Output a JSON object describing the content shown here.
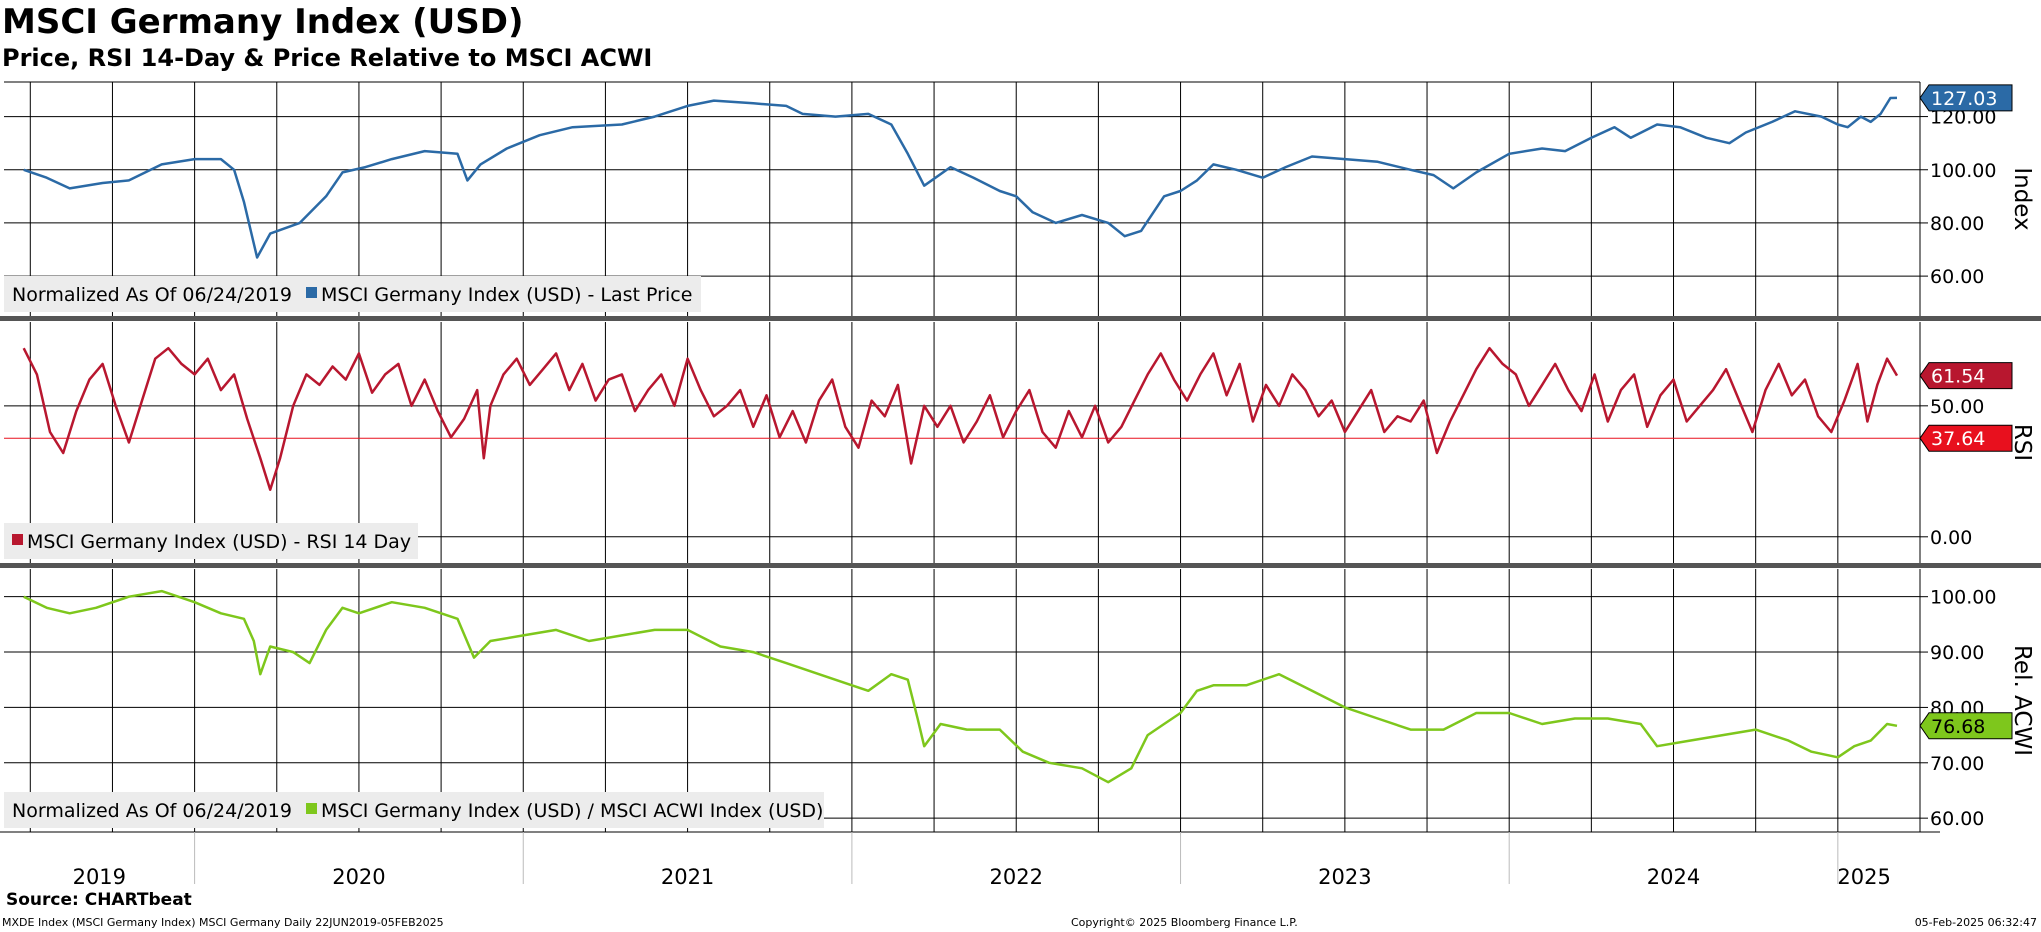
{
  "header": {
    "title": "MSCI Germany Index (USD)",
    "subtitle": "Price, RSI 14-Day & Price Relative to MSCI ACWI"
  },
  "footer": {
    "source": "Source: CHARTbeat",
    "meta_left": "MXDE Index (MSCI Germany Index) MSCI Germany  Daily 22JUN2019-05FEB2025",
    "copyright": "Copyright© 2025 Bloomberg Finance L.P.",
    "timestamp": "05-Feb-2025 06:32:47"
  },
  "colors": {
    "price": "#2b6aa6",
    "rsi": "#b8172f",
    "rsi_ref": "#e8101e",
    "relative": "#7ec71c",
    "grid": "#000000",
    "legend_bg": "#ececec",
    "divider": "#555555"
  },
  "chart_data": [
    {
      "id": "price",
      "type": "line",
      "axis_label": "Index",
      "ylim": [
        45,
        133
      ],
      "ticks": [
        "60.00",
        "80.00",
        "100.00",
        "120.00"
      ],
      "tick_values": [
        60,
        80,
        100,
        120
      ],
      "legend_prefix": "Normalized As Of 06/24/2019",
      "legend_label": "MSCI Germany Index (USD) - Last Price",
      "last_value": "127.03",
      "last_value_num": 127.03,
      "series_points": [
        [
          2019.48,
          100
        ],
        [
          2019.55,
          97
        ],
        [
          2019.62,
          93
        ],
        [
          2019.72,
          95
        ],
        [
          2019.8,
          96
        ],
        [
          2019.9,
          102
        ],
        [
          2020.0,
          104
        ],
        [
          2020.08,
          104
        ],
        [
          2020.12,
          100
        ],
        [
          2020.15,
          88
        ],
        [
          2020.19,
          67
        ],
        [
          2020.23,
          76
        ],
        [
          2020.32,
          80
        ],
        [
          2020.4,
          90
        ],
        [
          2020.45,
          99
        ],
        [
          2020.52,
          101
        ],
        [
          2020.6,
          104
        ],
        [
          2020.7,
          107
        ],
        [
          2020.8,
          106
        ],
        [
          2020.83,
          96
        ],
        [
          2020.87,
          102
        ],
        [
          2020.95,
          108
        ],
        [
          2021.05,
          113
        ],
        [
          2021.15,
          116
        ],
        [
          2021.3,
          117
        ],
        [
          2021.4,
          120
        ],
        [
          2021.5,
          124
        ],
        [
          2021.58,
          126
        ],
        [
          2021.7,
          125
        ],
        [
          2021.8,
          124
        ],
        [
          2021.85,
          121
        ],
        [
          2021.95,
          120
        ],
        [
          2022.05,
          121
        ],
        [
          2022.12,
          117
        ],
        [
          2022.17,
          106
        ],
        [
          2022.22,
          94
        ],
        [
          2022.3,
          101
        ],
        [
          2022.37,
          97
        ],
        [
          2022.45,
          92
        ],
        [
          2022.5,
          90
        ],
        [
          2022.55,
          84
        ],
        [
          2022.62,
          80
        ],
        [
          2022.7,
          83
        ],
        [
          2022.78,
          80
        ],
        [
          2022.83,
          75
        ],
        [
          2022.88,
          77
        ],
        [
          2022.95,
          90
        ],
        [
          2023.0,
          92
        ],
        [
          2023.05,
          96
        ],
        [
          2023.1,
          102
        ],
        [
          2023.17,
          100
        ],
        [
          2023.25,
          97
        ],
        [
          2023.32,
          101
        ],
        [
          2023.4,
          105
        ],
        [
          2023.5,
          104
        ],
        [
          2023.6,
          103
        ],
        [
          2023.7,
          100
        ],
        [
          2023.77,
          98
        ],
        [
          2023.83,
          93
        ],
        [
          2023.9,
          99
        ],
        [
          2024.0,
          106
        ],
        [
          2024.1,
          108
        ],
        [
          2024.17,
          107
        ],
        [
          2024.25,
          112
        ],
        [
          2024.32,
          116
        ],
        [
          2024.37,
          112
        ],
        [
          2024.45,
          117
        ],
        [
          2024.52,
          116
        ],
        [
          2024.6,
          112
        ],
        [
          2024.67,
          110
        ],
        [
          2024.72,
          114
        ],
        [
          2024.8,
          118
        ],
        [
          2024.87,
          122
        ],
        [
          2024.95,
          120
        ],
        [
          2025.0,
          117
        ],
        [
          2025.03,
          116
        ],
        [
          2025.07,
          120
        ],
        [
          2025.1,
          118
        ],
        [
          2025.13,
          121
        ],
        [
          2025.16,
          127
        ],
        [
          2025.18,
          127.03
        ]
      ]
    },
    {
      "id": "rsi",
      "type": "line",
      "axis_label": "RSI",
      "ylim": [
        -10,
        82
      ],
      "ticks": [
        "0.00",
        "50.00"
      ],
      "tick_values": [
        0,
        50
      ],
      "legend_label": "MSCI Germany Index (USD) - RSI 14 Day",
      "last_value": "61.54",
      "last_value_num": 61.54,
      "reference_value": "37.64",
      "reference_value_num": 37.64,
      "series_points": [
        [
          2019.48,
          72
        ],
        [
          2019.52,
          62
        ],
        [
          2019.56,
          40
        ],
        [
          2019.6,
          32
        ],
        [
          2019.64,
          48
        ],
        [
          2019.68,
          60
        ],
        [
          2019.72,
          66
        ],
        [
          2019.76,
          50
        ],
        [
          2019.8,
          36
        ],
        [
          2019.84,
          52
        ],
        [
          2019.88,
          68
        ],
        [
          2019.92,
          72
        ],
        [
          2019.96,
          66
        ],
        [
          2020.0,
          62
        ],
        [
          2020.04,
          68
        ],
        [
          2020.08,
          56
        ],
        [
          2020.12,
          62
        ],
        [
          2020.16,
          45
        ],
        [
          2020.2,
          30
        ],
        [
          2020.23,
          18
        ],
        [
          2020.26,
          30
        ],
        [
          2020.3,
          50
        ],
        [
          2020.34,
          62
        ],
        [
          2020.38,
          58
        ],
        [
          2020.42,
          65
        ],
        [
          2020.46,
          60
        ],
        [
          2020.5,
          70
        ],
        [
          2020.54,
          55
        ],
        [
          2020.58,
          62
        ],
        [
          2020.62,
          66
        ],
        [
          2020.66,
          50
        ],
        [
          2020.7,
          60
        ],
        [
          2020.74,
          48
        ],
        [
          2020.78,
          38
        ],
        [
          2020.82,
          45
        ],
        [
          2020.86,
          56
        ],
        [
          2020.88,
          30
        ],
        [
          2020.9,
          50
        ],
        [
          2020.94,
          62
        ],
        [
          2020.98,
          68
        ],
        [
          2021.02,
          58
        ],
        [
          2021.06,
          64
        ],
        [
          2021.1,
          70
        ],
        [
          2021.14,
          56
        ],
        [
          2021.18,
          66
        ],
        [
          2021.22,
          52
        ],
        [
          2021.26,
          60
        ],
        [
          2021.3,
          62
        ],
        [
          2021.34,
          48
        ],
        [
          2021.38,
          56
        ],
        [
          2021.42,
          62
        ],
        [
          2021.46,
          50
        ],
        [
          2021.5,
          68
        ],
        [
          2021.54,
          56
        ],
        [
          2021.58,
          46
        ],
        [
          2021.62,
          50
        ],
        [
          2021.66,
          56
        ],
        [
          2021.7,
          42
        ],
        [
          2021.74,
          54
        ],
        [
          2021.78,
          38
        ],
        [
          2021.82,
          48
        ],
        [
          2021.86,
          36
        ],
        [
          2021.9,
          52
        ],
        [
          2021.94,
          60
        ],
        [
          2021.98,
          42
        ],
        [
          2022.02,
          34
        ],
        [
          2022.06,
          52
        ],
        [
          2022.1,
          46
        ],
        [
          2022.14,
          58
        ],
        [
          2022.18,
          28
        ],
        [
          2022.22,
          50
        ],
        [
          2022.26,
          42
        ],
        [
          2022.3,
          50
        ],
        [
          2022.34,
          36
        ],
        [
          2022.38,
          44
        ],
        [
          2022.42,
          54
        ],
        [
          2022.46,
          38
        ],
        [
          2022.5,
          48
        ],
        [
          2022.54,
          56
        ],
        [
          2022.58,
          40
        ],
        [
          2022.62,
          34
        ],
        [
          2022.66,
          48
        ],
        [
          2022.7,
          38
        ],
        [
          2022.74,
          50
        ],
        [
          2022.78,
          36
        ],
        [
          2022.82,
          42
        ],
        [
          2022.86,
          52
        ],
        [
          2022.9,
          62
        ],
        [
          2022.94,
          70
        ],
        [
          2022.98,
          60
        ],
        [
          2023.02,
          52
        ],
        [
          2023.06,
          62
        ],
        [
          2023.1,
          70
        ],
        [
          2023.14,
          54
        ],
        [
          2023.18,
          66
        ],
        [
          2023.22,
          44
        ],
        [
          2023.26,
          58
        ],
        [
          2023.3,
          50
        ],
        [
          2023.34,
          62
        ],
        [
          2023.38,
          56
        ],
        [
          2023.42,
          46
        ],
        [
          2023.46,
          52
        ],
        [
          2023.5,
          40
        ],
        [
          2023.54,
          48
        ],
        [
          2023.58,
          56
        ],
        [
          2023.62,
          40
        ],
        [
          2023.66,
          46
        ],
        [
          2023.7,
          44
        ],
        [
          2023.74,
          52
        ],
        [
          2023.78,
          32
        ],
        [
          2023.82,
          44
        ],
        [
          2023.86,
          54
        ],
        [
          2023.9,
          64
        ],
        [
          2023.94,
          72
        ],
        [
          2023.98,
          66
        ],
        [
          2024.02,
          62
        ],
        [
          2024.06,
          50
        ],
        [
          2024.1,
          58
        ],
        [
          2024.14,
          66
        ],
        [
          2024.18,
          56
        ],
        [
          2024.22,
          48
        ],
        [
          2024.26,
          62
        ],
        [
          2024.3,
          44
        ],
        [
          2024.34,
          56
        ],
        [
          2024.38,
          62
        ],
        [
          2024.42,
          42
        ],
        [
          2024.46,
          54
        ],
        [
          2024.5,
          60
        ],
        [
          2024.54,
          44
        ],
        [
          2024.58,
          50
        ],
        [
          2024.62,
          56
        ],
        [
          2024.66,
          64
        ],
        [
          2024.7,
          52
        ],
        [
          2024.74,
          40
        ],
        [
          2024.78,
          56
        ],
        [
          2024.82,
          66
        ],
        [
          2024.86,
          54
        ],
        [
          2024.9,
          60
        ],
        [
          2024.94,
          46
        ],
        [
          2024.98,
          40
        ],
        [
          2025.02,
          52
        ],
        [
          2025.06,
          66
        ],
        [
          2025.09,
          44
        ],
        [
          2025.12,
          58
        ],
        [
          2025.15,
          68
        ],
        [
          2025.18,
          61.54
        ]
      ]
    },
    {
      "id": "relative",
      "type": "line",
      "axis_label": "Rel. ACWI",
      "ylim": [
        57.5,
        105
      ],
      "ticks": [
        "60.00",
        "70.00",
        "80.00",
        "90.00",
        "100.00"
      ],
      "tick_values": [
        60,
        70,
        80,
        90,
        100
      ],
      "legend_prefix": "Normalized As Of 06/24/2019",
      "legend_label": "MSCI Germany Index (USD) / MSCI ACWI Index (USD)",
      "last_value": "76.68",
      "last_value_num": 76.68,
      "series_points": [
        [
          2019.48,
          100
        ],
        [
          2019.55,
          98
        ],
        [
          2019.62,
          97
        ],
        [
          2019.7,
          98
        ],
        [
          2019.8,
          100
        ],
        [
          2019.9,
          101
        ],
        [
          2020.0,
          99
        ],
        [
          2020.08,
          97
        ],
        [
          2020.15,
          96
        ],
        [
          2020.18,
          92
        ],
        [
          2020.2,
          86
        ],
        [
          2020.23,
          91
        ],
        [
          2020.3,
          90
        ],
        [
          2020.35,
          88
        ],
        [
          2020.4,
          94
        ],
        [
          2020.45,
          98
        ],
        [
          2020.5,
          97
        ],
        [
          2020.6,
          99
        ],
        [
          2020.7,
          98
        ],
        [
          2020.8,
          96
        ],
        [
          2020.85,
          89
        ],
        [
          2020.9,
          92
        ],
        [
          2021.0,
          93
        ],
        [
          2021.1,
          94
        ],
        [
          2021.2,
          92
        ],
        [
          2021.3,
          93
        ],
        [
          2021.4,
          94
        ],
        [
          2021.5,
          94
        ],
        [
          2021.6,
          91
        ],
        [
          2021.7,
          90
        ],
        [
          2021.8,
          88
        ],
        [
          2021.9,
          86
        ],
        [
          2022.0,
          84
        ],
        [
          2022.05,
          83
        ],
        [
          2022.12,
          86
        ],
        [
          2022.17,
          85
        ],
        [
          2022.2,
          78
        ],
        [
          2022.22,
          73
        ],
        [
          2022.27,
          77
        ],
        [
          2022.35,
          76
        ],
        [
          2022.45,
          76
        ],
        [
          2022.52,
          72
        ],
        [
          2022.6,
          70
        ],
        [
          2022.7,
          69
        ],
        [
          2022.78,
          66.5
        ],
        [
          2022.85,
          69
        ],
        [
          2022.9,
          75
        ],
        [
          2022.95,
          77
        ],
        [
          2023.0,
          79
        ],
        [
          2023.05,
          83
        ],
        [
          2023.1,
          84
        ],
        [
          2023.2,
          84
        ],
        [
          2023.3,
          86
        ],
        [
          2023.4,
          83
        ],
        [
          2023.5,
          80
        ],
        [
          2023.6,
          78
        ],
        [
          2023.7,
          76
        ],
        [
          2023.8,
          76
        ],
        [
          2023.9,
          79
        ],
        [
          2024.0,
          79
        ],
        [
          2024.1,
          77
        ],
        [
          2024.2,
          78
        ],
        [
          2024.3,
          78
        ],
        [
          2024.4,
          77
        ],
        [
          2024.45,
          73
        ],
        [
          2024.55,
          74
        ],
        [
          2024.65,
          75
        ],
        [
          2024.75,
          76
        ],
        [
          2024.85,
          74
        ],
        [
          2024.92,
          72
        ],
        [
          2025.0,
          71
        ],
        [
          2025.05,
          73
        ],
        [
          2025.1,
          74
        ],
        [
          2025.15,
          77
        ],
        [
          2025.18,
          76.68
        ]
      ]
    }
  ],
  "x_axis": {
    "start": 2019.42,
    "end": 2025.25,
    "year_labels": [
      {
        "label": "2019",
        "center": 2019.71
      },
      {
        "label": "2020",
        "center": 2020.5
      },
      {
        "label": "2021",
        "center": 2021.5
      },
      {
        "label": "2022",
        "center": 2022.5
      },
      {
        "label": "2023",
        "center": 2023.5
      },
      {
        "label": "2024",
        "center": 2024.5
      },
      {
        "label": "2025",
        "center": 2025.08
      }
    ]
  }
}
